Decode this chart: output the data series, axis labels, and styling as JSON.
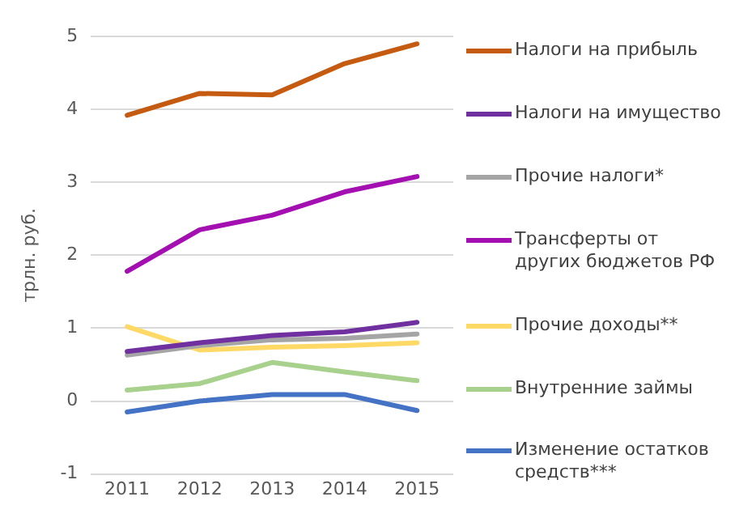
{
  "chart_data": {
    "type": "line",
    "ylabel": "трлн. руб.",
    "categories": [
      "2011",
      "2012",
      "2013",
      "2014",
      "2015"
    ],
    "ylim": [
      -1,
      5
    ],
    "yticks": [
      -1,
      0,
      1,
      2,
      3,
      4,
      5
    ],
    "grid": "y",
    "legend": "right",
    "marker": "none",
    "line_style": "solid",
    "series": [
      {
        "name": "Налоги на прибыль",
        "color": "#c55a11",
        "values": [
          3.92,
          4.22,
          4.2,
          4.63,
          4.9
        ]
      },
      {
        "name": "Налоги на имущество",
        "color": "#7030a0",
        "values": [
          0.68,
          0.8,
          0.9,
          0.95,
          1.08
        ]
      },
      {
        "name": "Прочие налоги*",
        "color": "#a5a5a5",
        "values": [
          0.63,
          0.76,
          0.84,
          0.86,
          0.92
        ]
      },
      {
        "name": "Трансферты от других бюджетов РФ",
        "color": "#a30fb0",
        "values": [
          1.78,
          2.35,
          2.55,
          2.87,
          3.08
        ]
      },
      {
        "name": "Прочие доходы**",
        "color": "#ffd966",
        "values": [
          1.02,
          0.7,
          0.74,
          0.76,
          0.8
        ]
      },
      {
        "name": "Внутренние займы",
        "color": "#a9d18e",
        "values": [
          0.15,
          0.24,
          0.53,
          0.4,
          0.28
        ]
      },
      {
        "name": "Изменение остатков средств***",
        "color": "#4472c4",
        "values": [
          -0.15,
          0.0,
          0.09,
          0.09,
          -0.13
        ]
      }
    ]
  }
}
